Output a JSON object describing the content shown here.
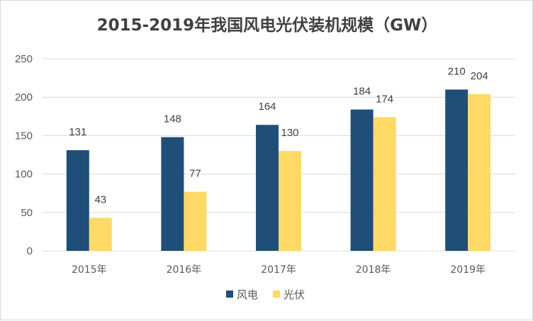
{
  "chart_data": {
    "type": "bar",
    "title": "2015-2019年我国风电光伏装机规模（GW）",
    "xlabel": "",
    "ylabel": "",
    "categories": [
      "2015年",
      "2016年",
      "2017年",
      "2018年",
      "2019年"
    ],
    "series": [
      {
        "name": "风电",
        "values": [
          131,
          148,
          164,
          184,
          210
        ],
        "color": "#1F4E79"
      },
      {
        "name": "光伏",
        "values": [
          43,
          77,
          130,
          174,
          204
        ],
        "color": "#FFD966"
      }
    ],
    "ylim": [
      0,
      250
    ],
    "yticks": [
      0,
      50,
      100,
      150,
      200,
      250
    ],
    "grid": true,
    "legend": "bottom",
    "data_labels": true
  }
}
